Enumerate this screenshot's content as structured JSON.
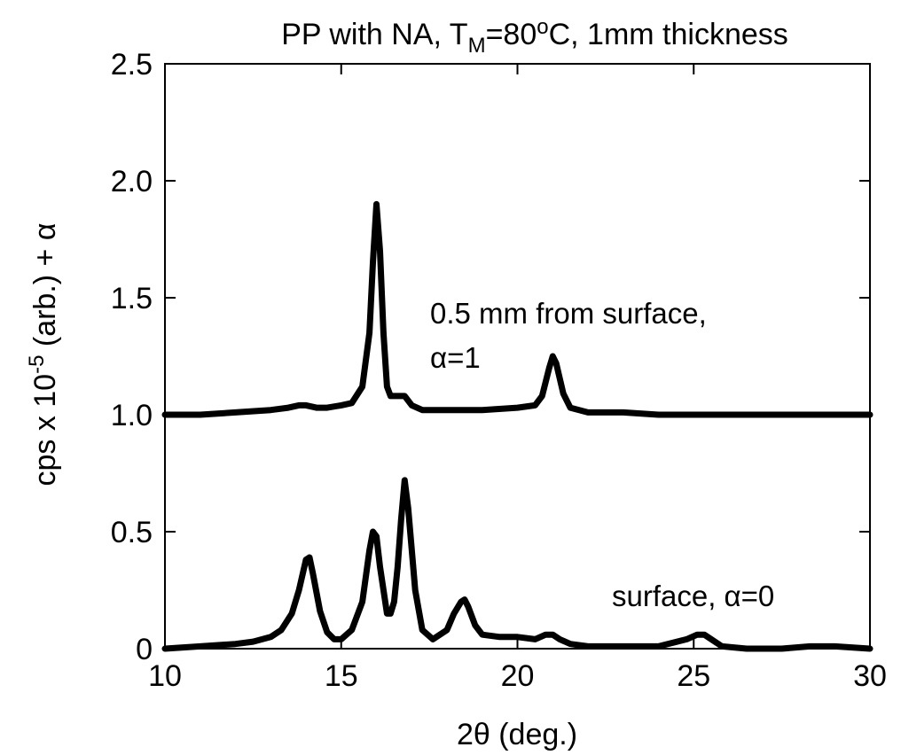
{
  "chart_data": {
    "type": "line",
    "title": {
      "pre": "PP with NA, T",
      "sub": "M",
      "mid": "=80",
      "sup": "o",
      "post": "C, 1mm thickness"
    },
    "xlabel": "2θ (deg.)",
    "ylabel": {
      "pre": "cps x 10",
      "sup": "-5",
      "post": " (arb.) + α"
    },
    "xlim": [
      10,
      30
    ],
    "ylim": [
      0,
      2.5
    ],
    "x_ticks": [
      10,
      15,
      20,
      25,
      30
    ],
    "x_tick_labels": [
      "10",
      "15",
      "20",
      "25",
      "30"
    ],
    "y_ticks": [
      0,
      0.5,
      1.0,
      1.5,
      2.0,
      2.5
    ],
    "y_tick_labels": [
      "0",
      "0.5",
      "1.0",
      "1.5",
      "2.0",
      "2.5"
    ],
    "grid": false,
    "series": [
      {
        "label": [
          "0.5 mm from surface,",
          "α=1"
        ],
        "x": [
          10.0,
          11.0,
          12.0,
          13.0,
          13.5,
          13.8,
          14.0,
          14.3,
          14.6,
          15.0,
          15.3,
          15.6,
          15.8,
          15.9,
          16.0,
          16.1,
          16.2,
          16.3,
          16.4,
          16.5,
          16.8,
          17.0,
          17.3,
          18.0,
          19.0,
          20.0,
          20.5,
          20.7,
          20.9,
          21.0,
          21.1,
          21.3,
          21.5,
          22.0,
          23.0,
          24.0,
          25.0,
          26.0,
          27.0,
          28.0,
          29.0,
          30.0
        ],
        "y": [
          1.0,
          1.0,
          1.01,
          1.02,
          1.03,
          1.04,
          1.04,
          1.03,
          1.03,
          1.04,
          1.05,
          1.12,
          1.35,
          1.65,
          1.9,
          1.7,
          1.35,
          1.12,
          1.08,
          1.08,
          1.08,
          1.04,
          1.02,
          1.02,
          1.02,
          1.03,
          1.04,
          1.08,
          1.2,
          1.25,
          1.22,
          1.09,
          1.03,
          1.01,
          1.01,
          1.0,
          1.0,
          1.0,
          1.0,
          1.0,
          1.0,
          1.0
        ]
      },
      {
        "label": [
          "surface, α=0"
        ],
        "x": [
          10.0,
          11.0,
          12.0,
          12.5,
          13.0,
          13.3,
          13.6,
          13.8,
          14.0,
          14.1,
          14.2,
          14.4,
          14.6,
          14.8,
          15.0,
          15.3,
          15.6,
          15.8,
          15.9,
          16.0,
          16.1,
          16.3,
          16.4,
          16.5,
          16.6,
          16.7,
          16.8,
          16.9,
          17.1,
          17.3,
          17.6,
          18.0,
          18.2,
          18.4,
          18.5,
          18.6,
          18.8,
          19.0,
          19.5,
          20.0,
          20.5,
          20.8,
          21.0,
          21.2,
          21.5,
          22.0,
          23.0,
          24.0,
          24.8,
          25.1,
          25.3,
          25.5,
          25.8,
          26.5,
          27.5,
          28.3,
          28.6,
          29.0,
          30.0
        ],
        "y": [
          0.0,
          0.01,
          0.02,
          0.03,
          0.05,
          0.08,
          0.15,
          0.25,
          0.38,
          0.39,
          0.32,
          0.16,
          0.07,
          0.04,
          0.04,
          0.08,
          0.2,
          0.42,
          0.5,
          0.48,
          0.35,
          0.15,
          0.15,
          0.2,
          0.35,
          0.55,
          0.72,
          0.6,
          0.25,
          0.08,
          0.04,
          0.08,
          0.15,
          0.2,
          0.21,
          0.18,
          0.1,
          0.06,
          0.05,
          0.05,
          0.04,
          0.06,
          0.06,
          0.04,
          0.02,
          0.01,
          0.01,
          0.01,
          0.04,
          0.06,
          0.06,
          0.04,
          0.01,
          0.0,
          0.0,
          0.01,
          0.01,
          0.01,
          0.0
        ]
      }
    ]
  }
}
